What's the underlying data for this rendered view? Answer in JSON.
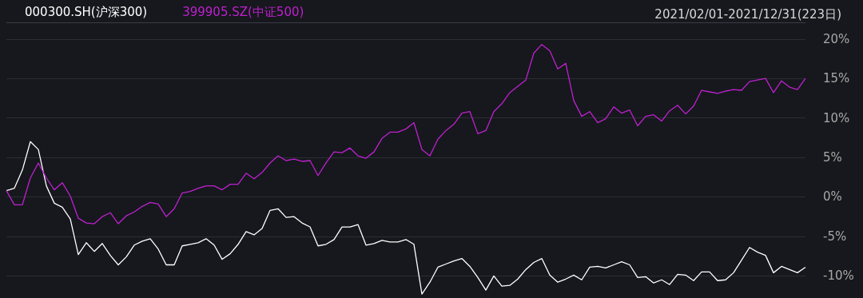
{
  "chart_data": {
    "type": "line",
    "title": "2021/02/01-2021/12/31(223日)",
    "categories": [
      null,
      null,
      null,
      null,
      null,
      null,
      null,
      null,
      null,
      null,
      null,
      null,
      null,
      null,
      null,
      null,
      null,
      null,
      null,
      null,
      null,
      null,
      null,
      null,
      null,
      null,
      null,
      null,
      null,
      null,
      null,
      null,
      null,
      null,
      null,
      null,
      null,
      null,
      null,
      null,
      null,
      null,
      null,
      null,
      null,
      null,
      null,
      null,
      null,
      null,
      null,
      null,
      null,
      null,
      null,
      null,
      null,
      null,
      null,
      null,
      null,
      null,
      null,
      null,
      null,
      null,
      null,
      null,
      null,
      null,
      null,
      null,
      null,
      null,
      null,
      null,
      null,
      null,
      null,
      null,
      null,
      null,
      null,
      null,
      null,
      null,
      null,
      null,
      null,
      null,
      null,
      null,
      null,
      null,
      null,
      null,
      null,
      null,
      null,
      null,
      null
    ],
    "series": [
      {
        "name": "000300.SH(沪深300)",
        "color": "#ffffff",
        "values": [
          0.8,
          1.1,
          3.4,
          7.0,
          6.0,
          1.4,
          -0.8,
          -1.3,
          -2.8,
          -7.3,
          -5.8,
          -6.9,
          -5.9,
          -7.4,
          -8.6,
          -7.6,
          -6.1,
          -5.6,
          -5.3,
          -6.6,
          -8.6,
          -8.6,
          -6.2,
          -6.0,
          -5.8,
          -5.3,
          -6.1,
          -7.9,
          -7.2,
          -6.0,
          -4.4,
          -4.8,
          -4.0,
          -1.7,
          -1.5,
          -2.6,
          -2.5,
          -3.3,
          -3.8,
          -6.2,
          -6.0,
          -5.4,
          -3.8,
          -3.8,
          -3.5,
          -6.1,
          -5.9,
          -5.5,
          -5.7,
          -5.7,
          -5.4,
          -6.0,
          -12.3,
          -10.8,
          -8.9,
          -8.5,
          -8.1,
          -7.8,
          -8.8,
          -10.2,
          -11.8,
          -10.0,
          -11.3,
          -11.2,
          -10.4,
          -9.2,
          -8.3,
          -7.8,
          -9.9,
          -10.8,
          -10.4,
          -9.9,
          -10.5,
          -8.9,
          -8.8,
          -9.0,
          -8.6,
          -8.2,
          -8.6,
          -10.2,
          -10.1,
          -10.9,
          -10.5,
          -11.1,
          -9.8,
          -9.9,
          -10.6,
          -9.5,
          -9.5,
          -10.6,
          -10.5,
          -9.6,
          -8.0,
          -6.4,
          -7.0,
          -7.4,
          -9.6,
          -8.8,
          -9.2,
          -9.6,
          -8.9
        ]
      },
      {
        "name": "399905.SZ(中证500)",
        "color": "#c020d0",
        "values": [
          0.8,
          -1.0,
          -1.0,
          2.4,
          4.3,
          2.4,
          0.9,
          1.8,
          0.1,
          -2.7,
          -3.3,
          -3.4,
          -2.5,
          -2.0,
          -3.4,
          -2.4,
          -1.9,
          -1.2,
          -0.7,
          -0.9,
          -2.5,
          -1.5,
          0.5,
          0.7,
          1.1,
          1.4,
          1.4,
          0.9,
          1.6,
          1.6,
          3.0,
          2.3,
          3.1,
          4.3,
          5.2,
          4.6,
          4.8,
          4.5,
          4.6,
          2.7,
          4.3,
          5.7,
          5.6,
          6.2,
          5.2,
          4.9,
          5.7,
          7.4,
          8.2,
          8.2,
          8.6,
          9.4,
          6.0,
          5.2,
          7.3,
          8.4,
          9.2,
          10.6,
          10.8,
          8.0,
          8.4,
          10.8,
          11.8,
          13.2,
          14.0,
          14.8,
          18.2,
          19.3,
          18.5,
          16.2,
          16.9,
          12.2,
          10.2,
          10.8,
          9.4,
          9.9,
          11.4,
          10.6,
          11.0,
          9.0,
          10.2,
          10.4,
          9.6,
          10.9,
          11.6,
          10.5,
          11.5,
          13.5,
          13.3,
          13.1,
          13.4,
          13.6,
          13.5,
          14.6,
          14.8,
          15.0,
          13.2,
          14.7,
          13.9,
          13.6,
          15.0
        ]
      }
    ],
    "ylim": [
      -12.8,
      22.1
    ],
    "yticks": [
      {
        "value": -10,
        "label": "-10%"
      },
      {
        "value": -5,
        "label": "-5%"
      },
      {
        "value": 0,
        "label": "0%"
      },
      {
        "value": 5,
        "label": "5%"
      },
      {
        "value": 10,
        "label": "10%"
      },
      {
        "value": 15,
        "label": "15%"
      },
      {
        "value": 20,
        "label": "20%"
      }
    ],
    "grid": "y",
    "legend": "top left",
    "marker": "none",
    "line_style": "solid",
    "tick_labels": "y"
  }
}
